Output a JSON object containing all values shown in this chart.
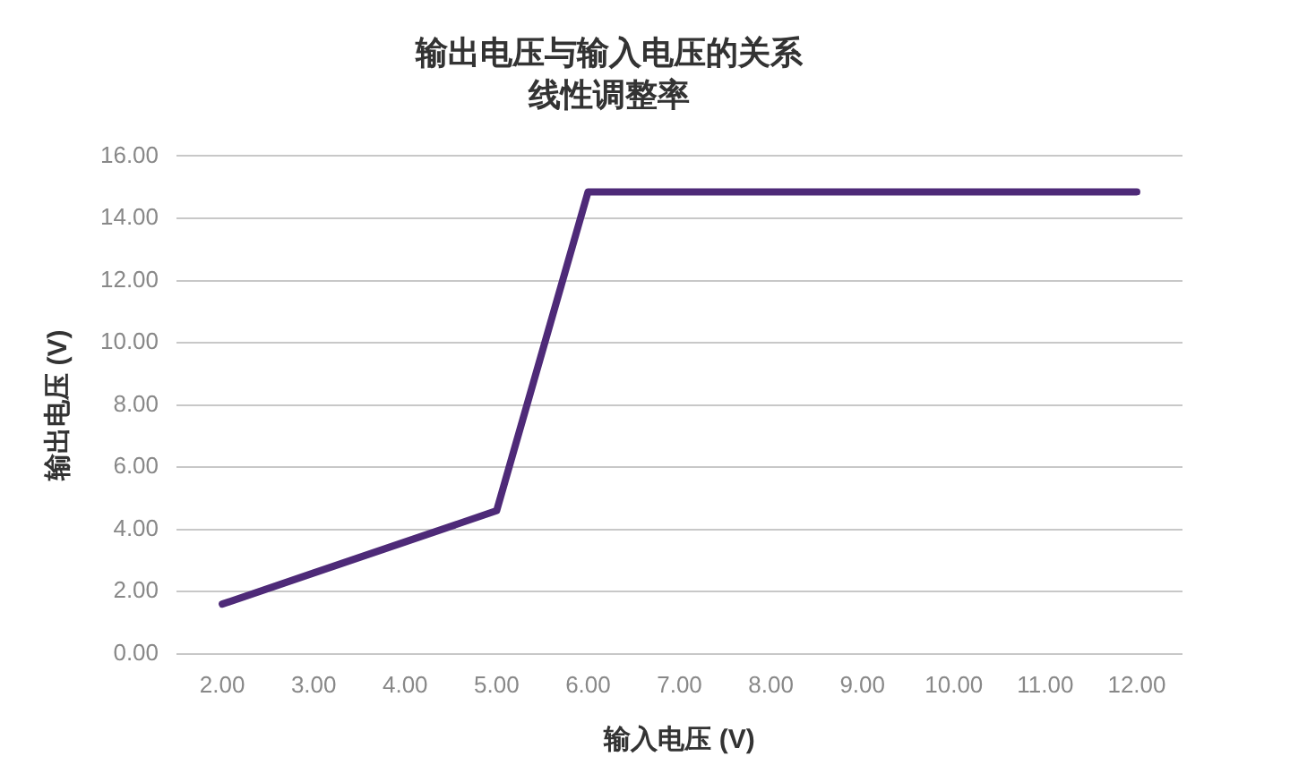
{
  "chart_data": {
    "type": "line",
    "title": "输出电压与输入电压的关系",
    "subtitle": "线性调整率",
    "xlabel": "输入电压 (V)",
    "ylabel": "输出电压 (V)",
    "categories": [
      "2.00",
      "3.00",
      "4.00",
      "5.00",
      "6.00",
      "7.00",
      "8.00",
      "9.00",
      "10.00",
      "11.00",
      "12.00"
    ],
    "series": [
      {
        "color": "#4e2a78",
        "values": [
          1.6,
          2.6,
          3.6,
          4.6,
          14.85,
          14.85,
          14.85,
          14.85,
          14.85,
          14.85,
          14.85
        ]
      }
    ],
    "ylim": [
      0,
      16
    ],
    "yticks": [
      {
        "value": 0,
        "label": "0.00"
      },
      {
        "value": 2,
        "label": "2.00"
      },
      {
        "value": 4,
        "label": "4.00"
      },
      {
        "value": 6,
        "label": "6.00"
      },
      {
        "value": 8,
        "label": "8.00"
      },
      {
        "value": 10,
        "label": "10.00"
      },
      {
        "value": 12,
        "label": "12.00"
      },
      {
        "value": 14,
        "label": "14.00"
      },
      {
        "value": 16,
        "label": "16.00"
      }
    ],
    "grid": "y",
    "legend": false,
    "marker": "none",
    "line_style": "solid"
  }
}
